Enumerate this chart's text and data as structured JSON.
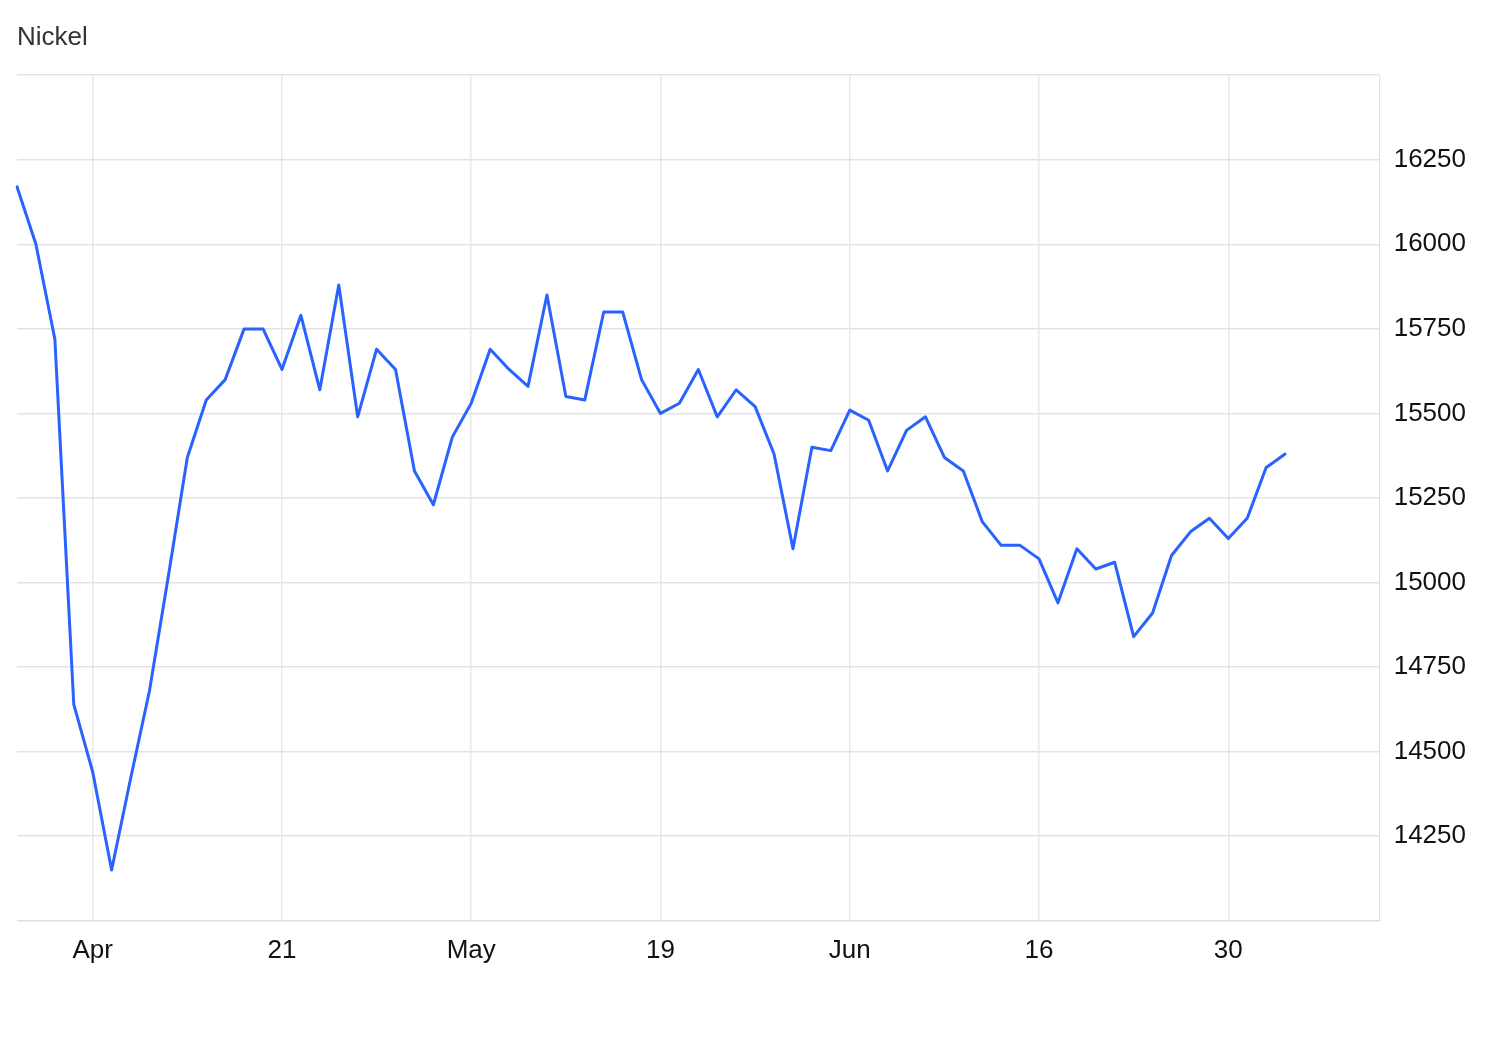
{
  "chart_data": {
    "type": "line",
    "title": "Nickel",
    "categories": [
      null,
      null,
      null,
      null,
      "Apr",
      null,
      null,
      null,
      null,
      null,
      null,
      null,
      null,
      null,
      "21",
      null,
      null,
      null,
      null,
      null,
      null,
      null,
      null,
      null,
      "May",
      null,
      null,
      null,
      null,
      null,
      null,
      null,
      null,
      null,
      "19",
      null,
      null,
      null,
      null,
      null,
      null,
      null,
      null,
      null,
      "Jun",
      null,
      null,
      null,
      null,
      null,
      null,
      null,
      null,
      null,
      "16",
      null,
      null,
      null,
      null,
      null,
      null,
      null,
      null,
      null,
      "30",
      null,
      null,
      null,
      null,
      null,
      null,
      null,
      null
    ],
    "series": [
      {
        "color": "#2962ff",
        "values": [
          16170,
          16000,
          15720,
          14640,
          14440,
          14150,
          14420,
          14680,
          15020,
          15370,
          15540,
          15600,
          15750,
          15750,
          15630,
          15790,
          15570,
          15880,
          15490,
          15690,
          15630,
          15330,
          15230,
          15430,
          15530,
          15690,
          15630,
          15580,
          15850,
          15550,
          15540,
          15800,
          15800,
          15600,
          15500,
          15530,
          15630,
          15490,
          15570,
          15520,
          15380,
          15100,
          15400,
          15390,
          15510,
          15480,
          15330,
          15450,
          15490,
          15370,
          15330,
          15180,
          15110,
          15110,
          15070,
          14940,
          15100,
          15040,
          15060,
          14840,
          14910,
          15080,
          15150,
          15190,
          15130,
          15190,
          15340,
          15380,
          null,
          null,
          null,
          null,
          null
        ]
      }
    ],
    "ylim": [
      14000,
      16500
    ],
    "yticks": [
      {
        "value": 14000,
        "label": null
      },
      14250,
      14500,
      14750,
      15000,
      15250,
      15500,
      15750,
      16000,
      16250,
      {
        "value": 16500,
        "label": null
      }
    ],
    "grid": true,
    "legend": false,
    "marker": "none",
    "line_style": "solid"
  }
}
